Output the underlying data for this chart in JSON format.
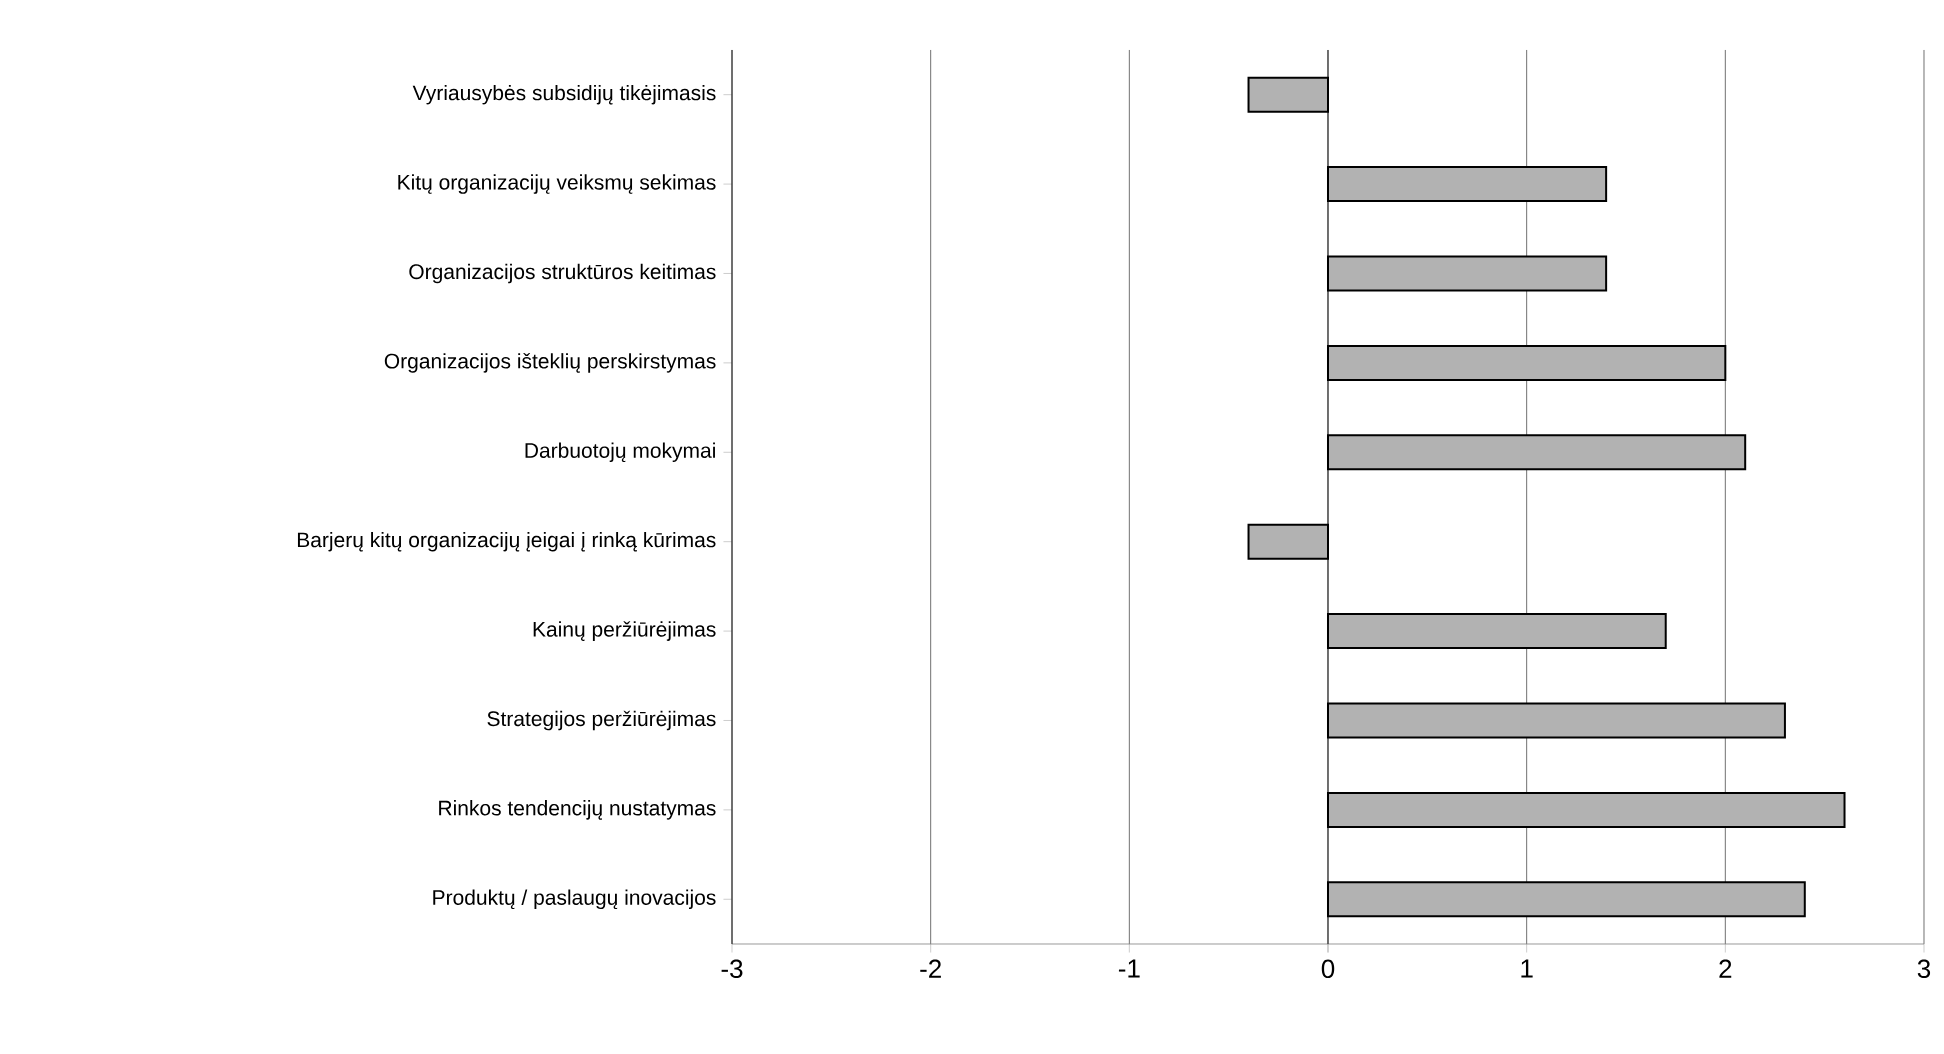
{
  "chart_data": {
    "type": "bar",
    "orientation": "horizontal",
    "categories": [
      "Vyriausybės subsidijų tikėjimasis",
      "Kitų organizacijų veiksmų sekimas",
      "Organizacijos struktūros keitimas",
      "Organizacijos išteklių perskirstymas",
      "Darbuotojų mokymai",
      "Barjerų kitų organizacijų įeigai į rinką kūrimas",
      "Kainų peržiūrėjimas",
      "Strategijos peržiūrėjimas",
      "Rinkos tendencijų nustatymas",
      "Produktų / paslaugų inovacijos"
    ],
    "values": [
      -0.4,
      1.4,
      1.4,
      2.0,
      2.1,
      -0.4,
      1.7,
      2.3,
      2.6,
      2.4
    ],
    "color": "#b2b2b2",
    "xlim": [
      -3,
      3
    ],
    "xticks": [
      -3,
      -2,
      -1,
      0,
      1,
      2,
      3
    ],
    "grid": "x"
  }
}
